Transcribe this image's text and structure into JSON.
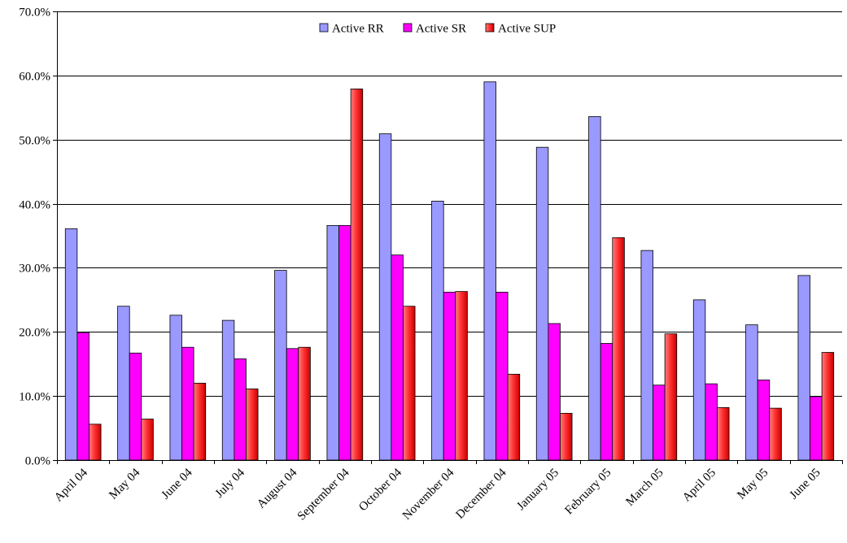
{
  "chart_data": {
    "type": "bar",
    "categories": [
      "April 04",
      "May 04",
      "June 04",
      "July 04",
      "August 04",
      "September 04",
      "October 04",
      "November 04",
      "December 04",
      "January 05",
      "February 05",
      "March 05",
      "April 05",
      "May 05",
      "June 05"
    ],
    "series": [
      {
        "name": "Active RR",
        "color": "#9999FF",
        "values": [
          36.1,
          24.0,
          22.6,
          21.8,
          29.6,
          36.6,
          50.9,
          40.4,
          59.0,
          48.8,
          53.6,
          32.7,
          25.0,
          21.1,
          28.8
        ]
      },
      {
        "name": "Active SR",
        "color": "#FF00FF",
        "values": [
          19.9,
          16.7,
          17.6,
          15.8,
          17.4,
          36.6,
          32.0,
          26.2,
          26.2,
          21.3,
          18.2,
          11.7,
          11.9,
          12.5,
          9.9
        ]
      },
      {
        "name": "Active SUP",
        "color": "#FF3333",
        "values": [
          5.6,
          6.4,
          12.0,
          11.1,
          17.6,
          57.9,
          24.0,
          26.3,
          13.4,
          7.3,
          34.7,
          19.7,
          8.2,
          8.1,
          16.8
        ]
      }
    ],
    "title": "",
    "xlabel": "",
    "ylabel": "",
    "ylim": [
      0,
      70
    ],
    "ytick_labels": [
      "0.0%",
      "10.0%",
      "20.0%",
      "30.0%",
      "40.0%",
      "50.0%",
      "60.0%",
      "70.0%"
    ],
    "grid": true,
    "legend": "top-center"
  }
}
